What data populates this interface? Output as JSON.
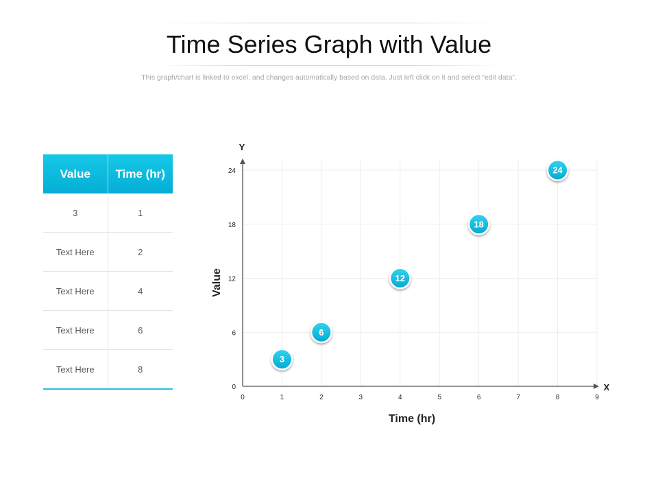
{
  "header": {
    "title": "Time Series Graph with Value",
    "subtitle": "This graph/chart is linked to excel, and changes automatically based on data. Just left click on it and select “edit data”."
  },
  "table": {
    "columns": [
      "Value",
      "Time (hr)"
    ],
    "rows": [
      [
        "3",
        "1"
      ],
      [
        "Text Here",
        "2"
      ],
      [
        "Text Here",
        "4"
      ],
      [
        "Text Here",
        "6"
      ],
      [
        "Text Here",
        "8"
      ]
    ]
  },
  "colors": {
    "accent": "#0fbfe0",
    "accent_dark": "#05aed6",
    "grid": "#ececec",
    "axis": "#555555"
  },
  "chart_data": {
    "type": "scatter",
    "points": [
      {
        "x": 1,
        "y": 3,
        "label": "3"
      },
      {
        "x": 2,
        "y": 6,
        "label": "6"
      },
      {
        "x": 4,
        "y": 12,
        "label": "12"
      },
      {
        "x": 6,
        "y": 18,
        "label": "18"
      },
      {
        "x": 8,
        "y": 24,
        "label": "24"
      }
    ],
    "xlabel": "Time (hr)",
    "ylabel": "Value",
    "x_axis_letter": "X",
    "y_axis_letter": "Y",
    "xlim": [
      0,
      9
    ],
    "ylim": [
      0,
      24
    ],
    "xticks": [
      0,
      1,
      2,
      3,
      4,
      5,
      6,
      7,
      8,
      9
    ],
    "yticks": [
      0,
      6,
      12,
      18,
      24
    ],
    "grid": true
  }
}
